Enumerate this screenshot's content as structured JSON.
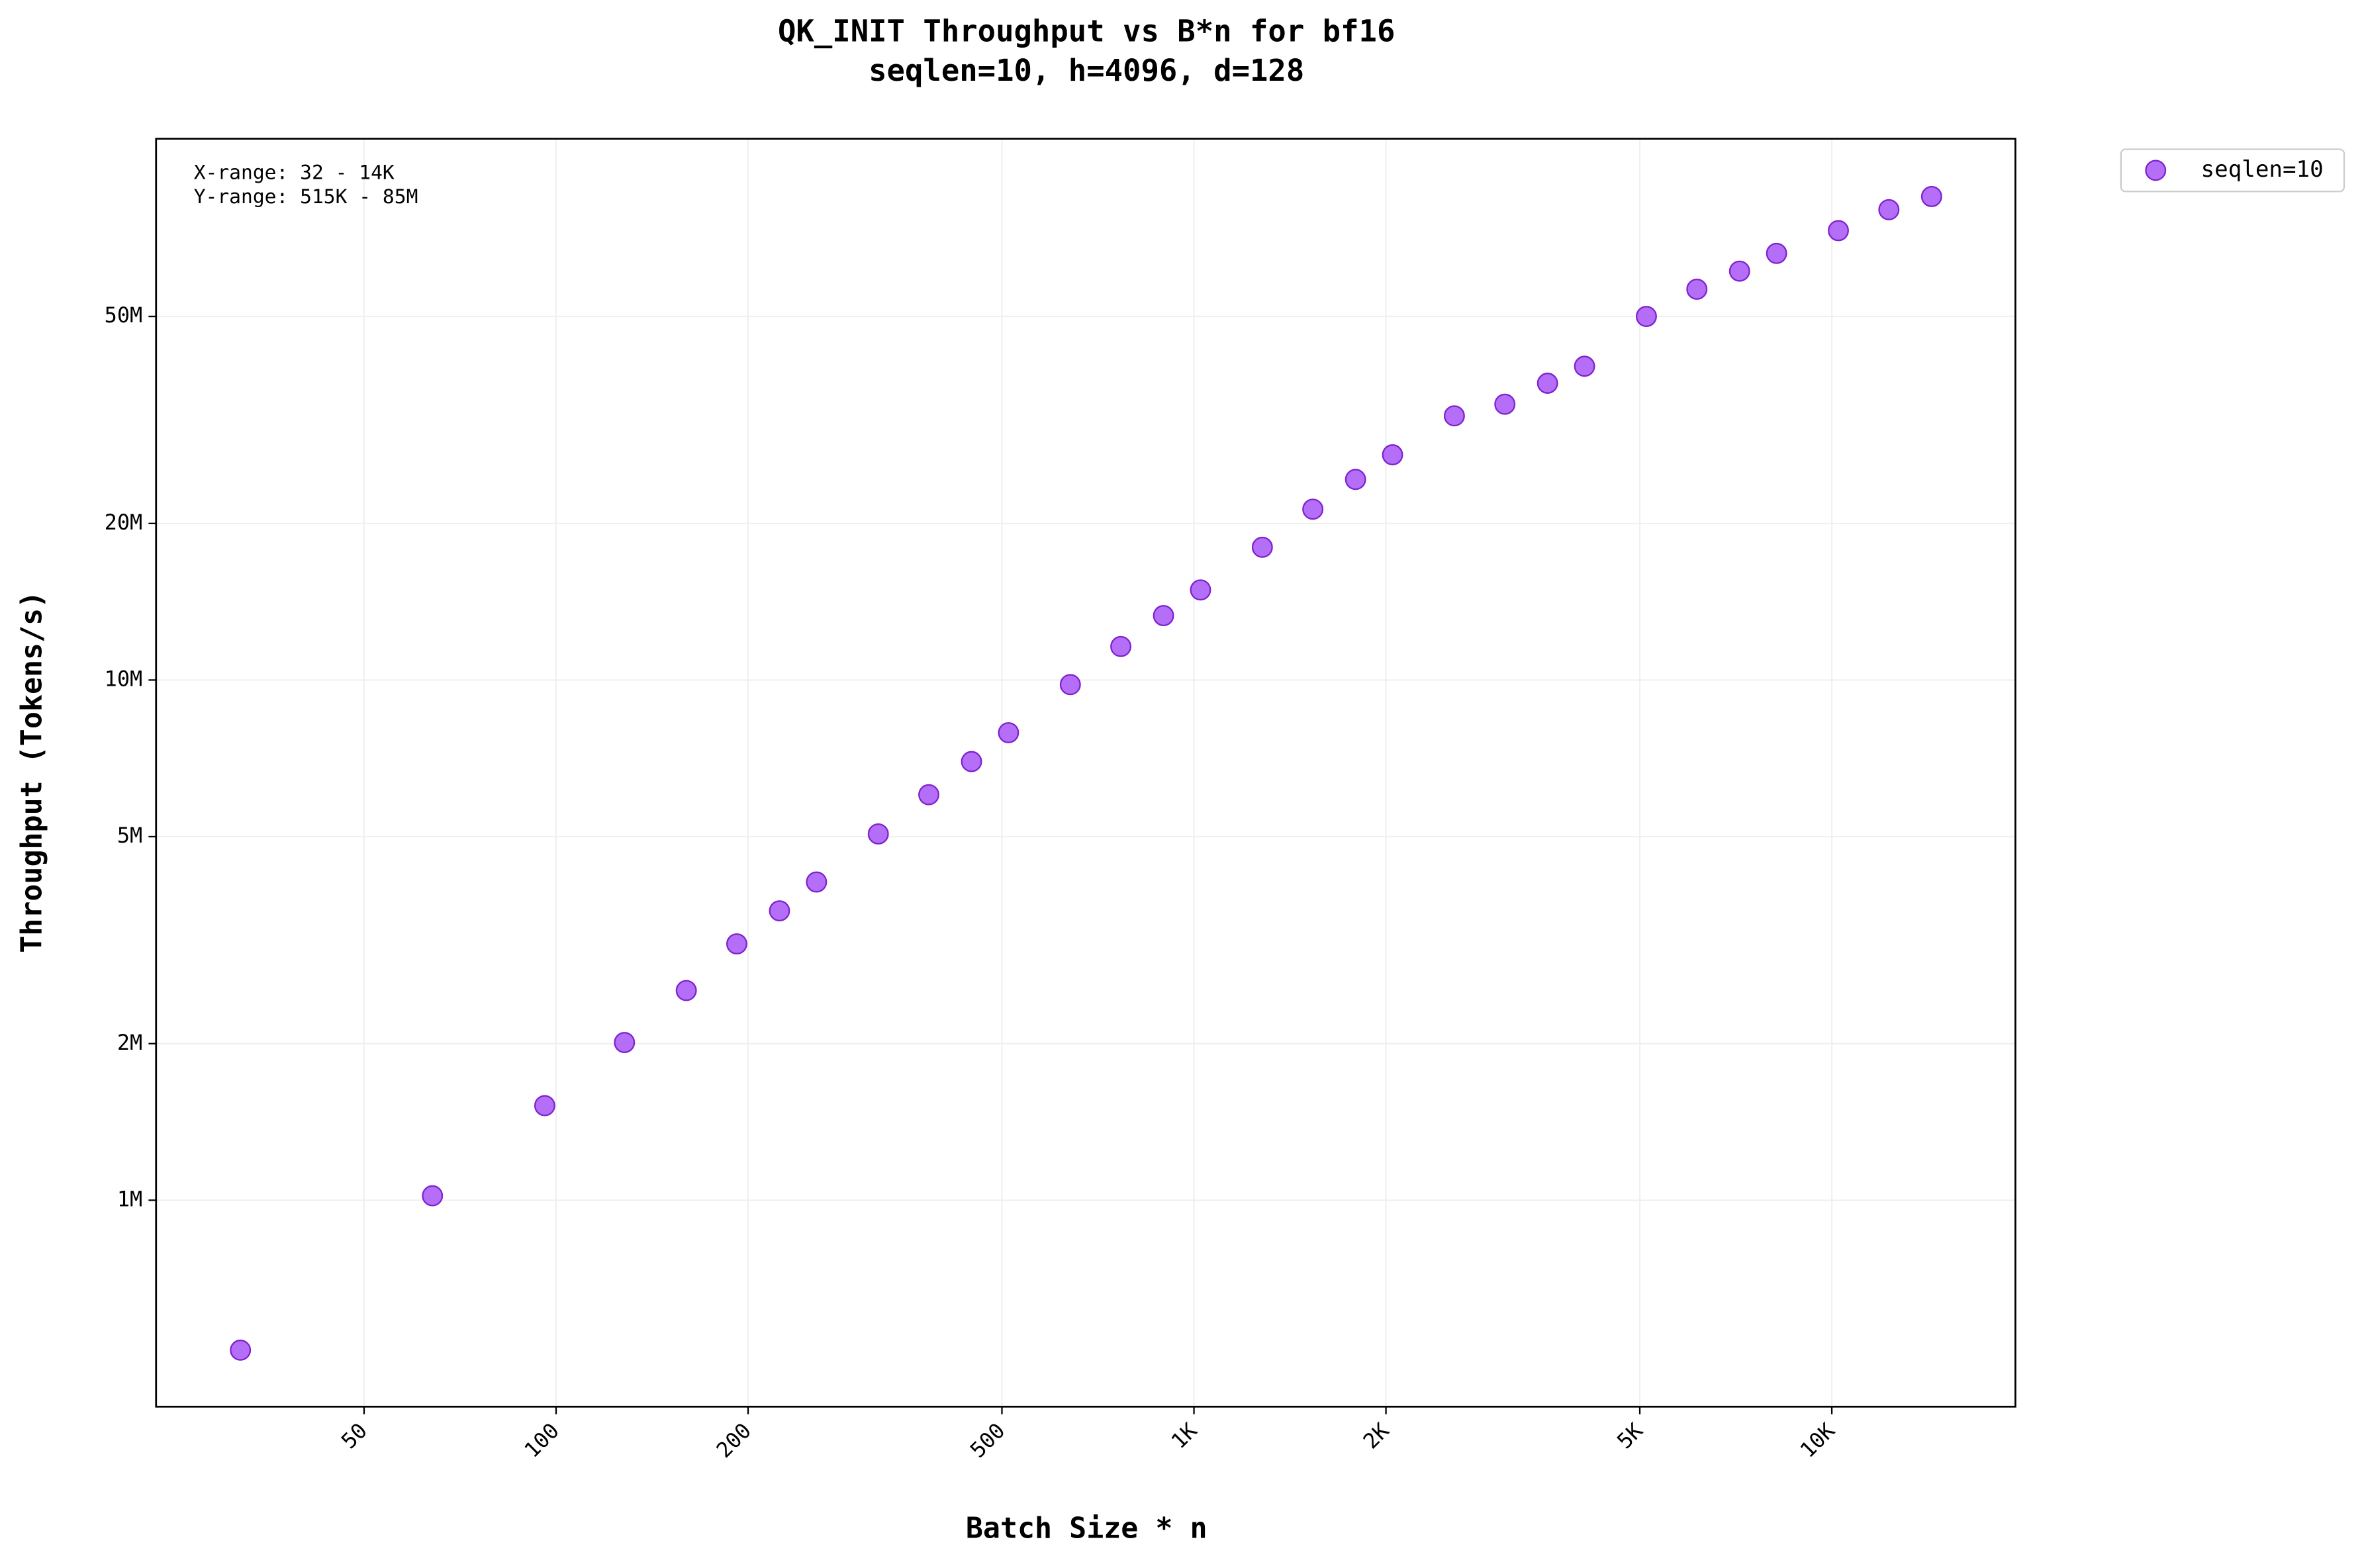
{
  "chart_data": {
    "type": "scatter",
    "title": "QK_INIT Throughput vs B*n for bf16",
    "subtitle": "seqlen=10, h=4096, d=128",
    "xlabel": "Batch Size * n",
    "ylabel": "Throughput (Tokens/s)",
    "annotations": [
      "X-range: 32 - 14K",
      "Y-range: 515K - 85M"
    ],
    "xscale": "log",
    "yscale": "log",
    "grid": true,
    "legend": "outside-upper-right",
    "x": [
      32,
      64,
      96,
      128,
      160,
      192,
      224,
      256,
      320,
      384,
      448,
      512,
      640,
      768,
      896,
      1024,
      1280,
      1536,
      1792,
      2048,
      2560,
      3072,
      3584,
      4096,
      5120,
      6144,
      7168,
      8192,
      10240,
      12288,
      14336
    ],
    "series": [
      {
        "name": "seqlen=10",
        "color": "#a855f7",
        "values": [
          515000,
          1020000,
          1520000,
          2010000,
          2530000,
          3110000,
          3600000,
          4090000,
          5060000,
          6020000,
          6970000,
          7920000,
          9800000,
          11600000,
          13300000,
          14900000,
          18000000,
          21300000,
          24300000,
          27100000,
          32200000,
          33900000,
          37200000,
          40100000,
          50000000,
          56400000,
          61100000,
          66100000,
          73100000,
          80200000,
          85000000
        ]
      }
    ],
    "xlim": [
      23.6,
      19400
    ],
    "ylim": [
      401000,
      109800000
    ],
    "xticks": [
      {
        "value": 50,
        "label": "50"
      },
      {
        "value": 100,
        "label": "100"
      },
      {
        "value": 200,
        "label": "200"
      },
      {
        "value": 500,
        "label": "500"
      },
      {
        "value": 1000,
        "label": "1K"
      },
      {
        "value": 2000,
        "label": "2K"
      },
      {
        "value": 5000,
        "label": "5K"
      },
      {
        "value": 10000,
        "label": "10K"
      }
    ],
    "yticks": [
      {
        "value": 1000000,
        "label": "1M"
      },
      {
        "value": 2000000,
        "label": "2M"
      },
      {
        "value": 5000000,
        "label": "5M"
      },
      {
        "value": 10000000,
        "label": "10M"
      },
      {
        "value": 20000000,
        "label": "20M"
      },
      {
        "value": 50000000,
        "label": "50M"
      }
    ]
  }
}
